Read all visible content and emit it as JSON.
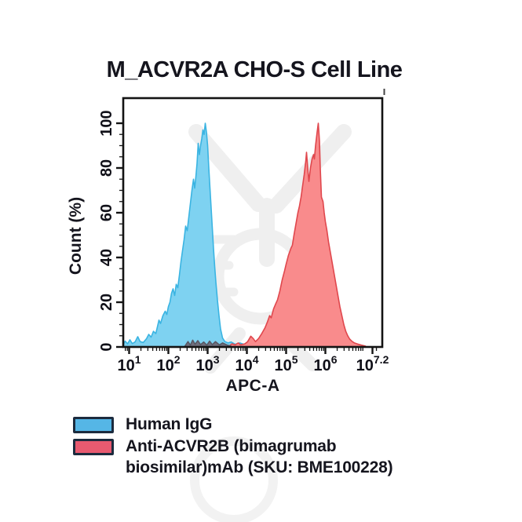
{
  "chart_data": {
    "type": "area",
    "title": "M_ACVR2A CHO-S Cell Line",
    "xlabel": "APC-A",
    "ylabel": "Count (%)",
    "x_scale": "log10",
    "x_range_log": [
      0.85,
      7.45
    ],
    "ylim": [
      0,
      105
    ],
    "grid": false,
    "legend_position": "bottom-left",
    "x_major_ticks": [
      {
        "log": 1,
        "base": "10",
        "exp": "1"
      },
      {
        "log": 2,
        "base": "10",
        "exp": "2"
      },
      {
        "log": 3,
        "base": "10",
        "exp": "3"
      },
      {
        "log": 4,
        "base": "10",
        "exp": "4"
      },
      {
        "log": 5,
        "base": "10",
        "exp": "5"
      },
      {
        "log": 6,
        "base": "10",
        "exp": "6"
      },
      {
        "log": 7.2,
        "base": "10",
        "exp": "7.2"
      }
    ],
    "y_major_ticks": [
      0,
      20,
      40,
      60,
      80,
      100
    ],
    "y_minor_step": 5,
    "series": [
      {
        "name": "Human IgG",
        "fill": "#7ed2f1",
        "stroke": "#3ab4e2",
        "points": [
          [
            0.85,
            1.2
          ],
          [
            0.9,
            2.6
          ],
          [
            0.96,
            1.4
          ],
          [
            1.02,
            3.2
          ],
          [
            1.08,
            1.5
          ],
          [
            1.15,
            2.2
          ],
          [
            1.22,
            4.6
          ],
          [
            1.28,
            2.4
          ],
          [
            1.36,
            2.0
          ],
          [
            1.44,
            3.6
          ],
          [
            1.5,
            5.6
          ],
          [
            1.56,
            4.4
          ],
          [
            1.62,
            7.0
          ],
          [
            1.68,
            6.0
          ],
          [
            1.72,
            9.0
          ],
          [
            1.76,
            12.0
          ],
          [
            1.8,
            10.5
          ],
          [
            1.86,
            14.0
          ],
          [
            1.92,
            16.0
          ],
          [
            1.96,
            14.5
          ],
          [
            2.0,
            18.0
          ],
          [
            2.04,
            20.0
          ],
          [
            2.08,
            24.0
          ],
          [
            2.12,
            26.0
          ],
          [
            2.16,
            23.0
          ],
          [
            2.2,
            28.0
          ],
          [
            2.24,
            26.5
          ],
          [
            2.28,
            32.0
          ],
          [
            2.32,
            38.0
          ],
          [
            2.36,
            43.0
          ],
          [
            2.4,
            48.0
          ],
          [
            2.44,
            54.0
          ],
          [
            2.48,
            52.0
          ],
          [
            2.52,
            58.0
          ],
          [
            2.56,
            64.0
          ],
          [
            2.6,
            70.0
          ],
          [
            2.64,
            75.0
          ],
          [
            2.67,
            71.0
          ],
          [
            2.7,
            76.0
          ],
          [
            2.73,
            82.0
          ],
          [
            2.76,
            91.0
          ],
          [
            2.79,
            86.0
          ],
          [
            2.82,
            90.0
          ],
          [
            2.85,
            93.0
          ],
          [
            2.88,
            97.0
          ],
          [
            2.91,
            95.0
          ],
          [
            2.94,
            100.0
          ],
          [
            2.97,
            96.0
          ],
          [
            3.0,
            90.0
          ],
          [
            3.03,
            80.0
          ],
          [
            3.06,
            71.0
          ],
          [
            3.09,
            62.0
          ],
          [
            3.12,
            53.0
          ],
          [
            3.15,
            44.0
          ],
          [
            3.18,
            36.0
          ],
          [
            3.21,
            29.0
          ],
          [
            3.25,
            21.0
          ],
          [
            3.29,
            14.0
          ],
          [
            3.33,
            8.0
          ],
          [
            3.38,
            4.0
          ],
          [
            3.44,
            2.4
          ],
          [
            3.52,
            1.8
          ],
          [
            3.6,
            2.2
          ],
          [
            3.7,
            1.2
          ],
          [
            3.82,
            1.8
          ],
          [
            3.95,
            1.0
          ],
          [
            4.1,
            1.4
          ],
          [
            4.3,
            0.8
          ],
          [
            4.55,
            1.1
          ],
          [
            4.8,
            0.6
          ],
          [
            5.1,
            1.0
          ],
          [
            5.4,
            0.6
          ],
          [
            5.7,
            1.0
          ],
          [
            6.0,
            0.5
          ],
          [
            6.25,
            0.8
          ],
          [
            6.4,
            0.3
          ]
        ]
      },
      {
        "name": "Anti-ACVR2B (bimagrumab biosimilar)mAb (SKU: BME100228)",
        "fill": "#f98b8c",
        "stroke": "#e0474d",
        "points": [
          [
            3.55,
            0.4
          ],
          [
            3.62,
            1.4
          ],
          [
            3.7,
            0.9
          ],
          [
            3.78,
            1.8
          ],
          [
            3.84,
            0.9
          ],
          [
            3.95,
            1.4
          ],
          [
            4.02,
            2.4
          ],
          [
            4.1,
            4.8
          ],
          [
            4.16,
            3.8
          ],
          [
            4.22,
            2.4
          ],
          [
            4.3,
            3.8
          ],
          [
            4.38,
            6.0
          ],
          [
            4.46,
            8.5
          ],
          [
            4.52,
            11.0
          ],
          [
            4.58,
            14.0
          ],
          [
            4.62,
            13.0
          ],
          [
            4.68,
            17.0
          ],
          [
            4.74,
            19.5
          ],
          [
            4.78,
            21.0
          ],
          [
            4.84,
            25.0
          ],
          [
            4.9,
            30.0
          ],
          [
            4.96,
            34.0
          ],
          [
            5.0,
            37.0
          ],
          [
            5.06,
            41.0
          ],
          [
            5.12,
            44.0
          ],
          [
            5.16,
            45.5
          ],
          [
            5.2,
            50.0
          ],
          [
            5.25,
            55.0
          ],
          [
            5.3,
            60.0
          ],
          [
            5.34,
            63.0
          ],
          [
            5.38,
            67.0
          ],
          [
            5.42,
            72.0
          ],
          [
            5.46,
            77.0
          ],
          [
            5.5,
            83.0
          ],
          [
            5.52,
            87.0
          ],
          [
            5.55,
            80.0
          ],
          [
            5.58,
            74.0
          ],
          [
            5.62,
            80.0
          ],
          [
            5.66,
            84.0
          ],
          [
            5.7,
            86.0
          ],
          [
            5.72,
            84.0
          ],
          [
            5.75,
            90.0
          ],
          [
            5.79,
            96.0
          ],
          [
            5.82,
            100.0
          ],
          [
            5.85,
            92.0
          ],
          [
            5.87,
            80.0
          ],
          [
            5.9,
            67.0
          ],
          [
            5.94,
            65.0
          ],
          [
            5.97,
            60.0
          ],
          [
            6.0,
            56.0
          ],
          [
            6.04,
            52.0
          ],
          [
            6.08,
            47.0
          ],
          [
            6.12,
            43.0
          ],
          [
            6.17,
            38.0
          ],
          [
            6.22,
            33.0
          ],
          [
            6.27,
            28.0
          ],
          [
            6.32,
            23.0
          ],
          [
            6.37,
            18.0
          ],
          [
            6.42,
            14.0
          ],
          [
            6.47,
            10.0
          ],
          [
            6.52,
            7.0
          ],
          [
            6.57,
            5.0
          ],
          [
            6.62,
            3.5
          ],
          [
            6.68,
            2.5
          ],
          [
            6.74,
            1.8
          ],
          [
            6.82,
            1.3
          ],
          [
            6.92,
            0.8
          ],
          [
            7.02,
            0.4
          ]
        ]
      },
      {
        "name": "overlap",
        "fill": "#70707e",
        "stroke": "#585864",
        "points": [
          [
            2.42,
            0.3
          ],
          [
            2.5,
            2.4
          ],
          [
            2.56,
            0.8
          ],
          [
            2.62,
            3.0
          ],
          [
            2.68,
            1.2
          ],
          [
            2.75,
            2.8
          ],
          [
            2.82,
            1.0
          ],
          [
            2.9,
            2.2
          ],
          [
            2.98,
            0.8
          ],
          [
            3.05,
            2.6
          ],
          [
            3.12,
            1.0
          ],
          [
            3.2,
            2.4
          ],
          [
            3.3,
            0.9
          ],
          [
            3.38,
            1.8
          ],
          [
            3.5,
            0.8
          ],
          [
            3.6,
            0.3
          ]
        ]
      }
    ]
  },
  "legend": {
    "entries": [
      {
        "label": "Human IgG",
        "swatch_fill": "#55b6e6",
        "swatch_border": "#1c2b3e"
      },
      {
        "label": "Anti-ACVR2B (bimagrumab biosimilar)mAb (SKU: BME100228)",
        "swatch_fill": "#e85a70",
        "swatch_border": "#1c2b3e"
      }
    ]
  },
  "watermark_icon": "antibody-dna-logo-watermark"
}
